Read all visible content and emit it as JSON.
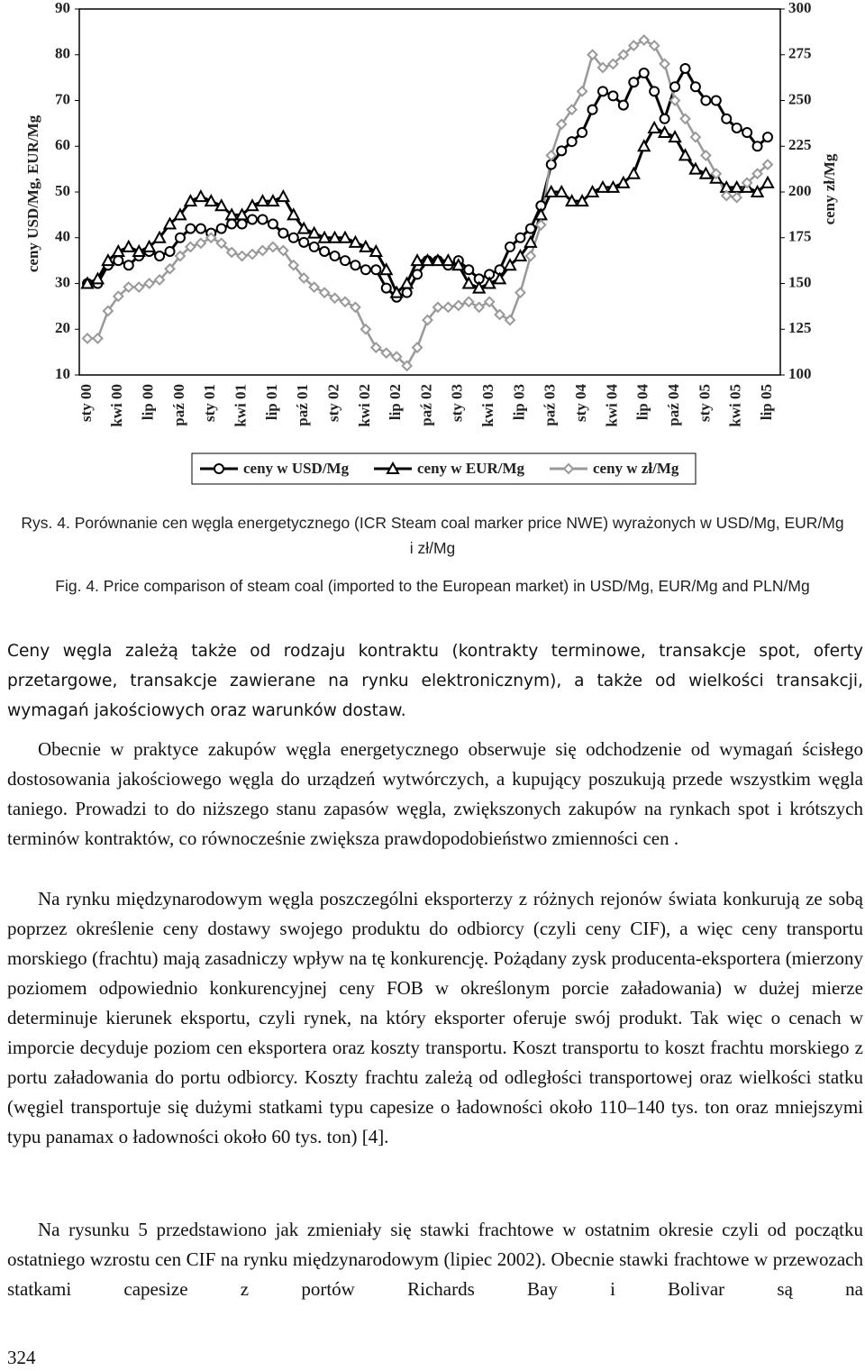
{
  "chart_data": {
    "type": "line",
    "categories": [
      "sty 00",
      null,
      null,
      "kwi 00",
      null,
      null,
      "lip 00",
      null,
      null,
      "paź 00",
      null,
      null,
      "sty 01",
      null,
      null,
      "kwi 01",
      null,
      null,
      "lip 01",
      null,
      null,
      "paź 01",
      null,
      null,
      "sty 02",
      null,
      null,
      "kwi 02",
      null,
      null,
      "lip 02",
      null,
      null,
      "paź 02",
      null,
      null,
      "sty 03",
      null,
      null,
      "kwi 03",
      null,
      null,
      "lip 03",
      null,
      null,
      "paź 03",
      null,
      null,
      "sty 04",
      null,
      null,
      "kwi 04",
      null,
      null,
      "lip 04",
      null,
      null,
      "paź 04",
      null,
      null,
      "sty 05",
      null,
      null,
      "kwi 05",
      null,
      null,
      "lip 05"
    ],
    "series": [
      {
        "name": "ceny w USD/Mg",
        "color": "#000000",
        "marker": "circle",
        "values": [
          30,
          30,
          34,
          35,
          34,
          36,
          37,
          36,
          37,
          40,
          42,
          42,
          41,
          42,
          43,
          43,
          44,
          44,
          43,
          41,
          40,
          39,
          38,
          37,
          36,
          35,
          34,
          33,
          33,
          29,
          27,
          28,
          32,
          35,
          35,
          34,
          35,
          33,
          31,
          32,
          33,
          38,
          40,
          42,
          47,
          56,
          59,
          61,
          63,
          68,
          72,
          71,
          69,
          74,
          76,
          72,
          66,
          73,
          77,
          73,
          70,
          70,
          66,
          64,
          63,
          60,
          62
        ]
      },
      {
        "name": "ceny w EUR/Mg",
        "color": "#000000",
        "marker": "triangle",
        "values": [
          30,
          31,
          35,
          37,
          38,
          37,
          38,
          40,
          43,
          45,
          48,
          49,
          48,
          47,
          45,
          45,
          47,
          48,
          48,
          49,
          45,
          42,
          41,
          40,
          40,
          40,
          39,
          38,
          37,
          33,
          28,
          30,
          35,
          35,
          35,
          35,
          34,
          30,
          29,
          30,
          31,
          34,
          36,
          39,
          45,
          50,
          50,
          48,
          48,
          50,
          51,
          51,
          52,
          54,
          60,
          64,
          63,
          62,
          58,
          55,
          54,
          53,
          51,
          51,
          51,
          50,
          52
        ]
      },
      {
        "name": "ceny w zł/Mg",
        "color": "#999999",
        "marker": "diamond",
        "axis": "y2",
        "values": [
          120,
          120,
          135,
          143,
          148,
          148,
          150,
          152,
          158,
          165,
          170,
          172,
          175,
          172,
          167,
          165,
          166,
          168,
          170,
          168,
          160,
          153,
          148,
          145,
          142,
          140,
          137,
          125,
          115,
          112,
          110,
          105,
          115,
          130,
          137,
          137,
          138,
          140,
          137,
          140,
          133,
          130,
          145,
          165,
          182,
          220,
          237,
          245,
          255,
          275,
          268,
          270,
          275,
          280,
          283,
          280,
          270,
          250,
          240,
          230,
          220,
          210,
          198,
          197,
          205,
          210,
          215
        ]
      }
    ],
    "ylabel": "ceny USD/Mg, EUR/Mg",
    "y2label": "ceny zł/Mg",
    "ylim": [
      10,
      90
    ],
    "yticks": [
      10,
      20,
      30,
      40,
      50,
      60,
      70,
      80,
      90
    ],
    "y2lim": [
      100,
      300
    ],
    "y2ticks": [
      100,
      125,
      150,
      175,
      200,
      225,
      250,
      275,
      300
    ],
    "grid": false,
    "legend": "bottom"
  },
  "captions": {
    "pl": "Rys. 4. Porównanie cen węgla energetycznego (ICR Steam coal marker price NWE) wyrażonych w USD/Mg, EUR/Mg i zł/Mg",
    "en": "Fig. 4. Price comparison of steam coal (imported to the European market) in USD/Mg, EUR/Mg and PLN/Mg"
  },
  "body": {
    "paragraphs": [
      "Ceny węgla zależą także od rodzaju kontraktu (kontrakty terminowe, transakcje spot, oferty przetargowe, transakcje zawierane na rynku elektronicznym), a także od wielkości transakcji, wymagań jakościowych oraz warunków dostaw.",
      "Obecnie w praktyce zakupów węgla energetycznego obserwuje się odchodzenie od wymagań ścisłego dostosowania jakościowego węgla do urządzeń wytwórczych, a kupujący poszukują przede wszystkim węgla taniego. Prowadzi to do niższego stanu zapasów węgla, zwiększonych zakupów na rynkach spot i krótszych terminów kontraktów, co równocześnie zwiększa prawdopodobieństwo zmienności cen .",
      "Na rynku międzynarodowym węgla poszczególni eksporterzy z różnych rejonów świata konkurują ze sobą poprzez określenie ceny dostawy swojego produktu do odbiorcy (czyli ceny CIF), a więc ceny transportu morskiego (frachtu) mają zasadniczy wpływ na tę konkurencję. Pożądany zysk producenta-eksportera (mierzony poziomem odpowiednio konkurencyjnej ceny FOB w określonym porcie załadowania) w dużej mierze determinuje kierunek eksportu, czyli rynek, na który eksporter oferuje swój produkt. Tak więc o cenach w imporcie decyduje poziom cen eksportera oraz koszty transportu. Koszt transportu to koszt frachtu morskiego z portu załadowania do portu odbiorcy. Koszty frachtu zależą od odległości transportowej oraz wielkości statku (węgiel transportuje się dużymi statkami typu capesize o ładowności około 110–140 tys. ton oraz mniejszymi typu panamax o ładowności około 60 tys. ton) [4].",
      "Na rysunku 5 przedstawiono jak zmieniały się stawki frachtowe w ostatnim okresie czyli od początku ostatniego wzrostu cen CIF na rynku międzynarodowym (lipiec 2002). Obecnie stawki frachtowe w przewozach statkami capesize z portów Richards Bay i Bolivar są na"
    ]
  },
  "page_number": "324"
}
